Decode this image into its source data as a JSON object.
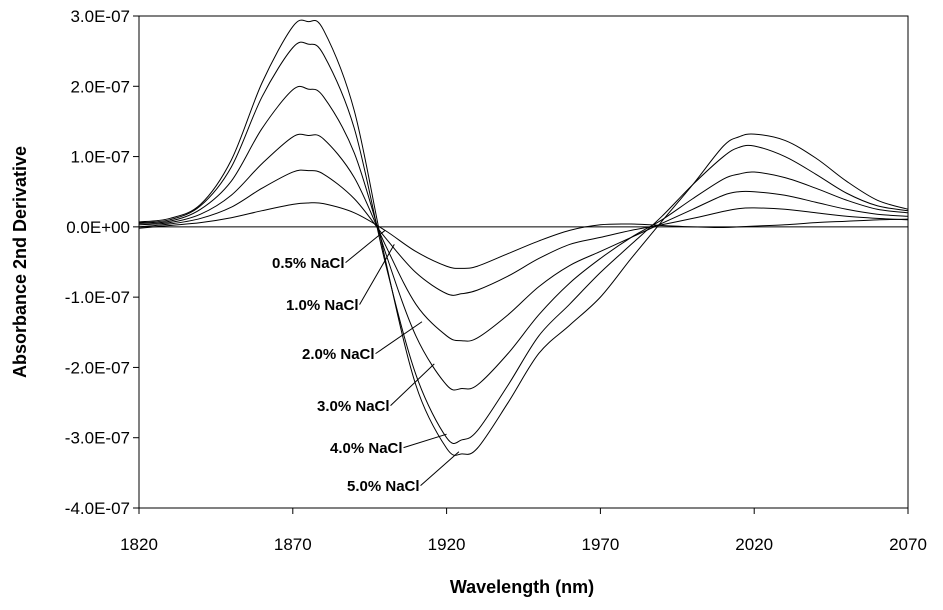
{
  "chart_data": {
    "type": "line",
    "title": "",
    "xlabel": "Wavelength (nm)",
    "ylabel": "Absorbance 2nd Derivative",
    "xlim": [
      1820,
      2070
    ],
    "ylim": [
      -4e-07,
      3e-07
    ],
    "x_ticks": [
      1820,
      1870,
      1920,
      1970,
      2020,
      2070
    ],
    "x_tick_labels": [
      "1820",
      "1870",
      "1920",
      "1970",
      "2020",
      "2070"
    ],
    "y_ticks": [
      3e-07,
      2e-07,
      1e-07,
      0,
      -1e-07,
      -2e-07,
      -3e-07,
      -4e-07
    ],
    "y_tick_labels": [
      "3.0E-07",
      "2.0E-07",
      "1.0E-07",
      "0.0E+00",
      "-1.0E-07",
      "-2.0E-07",
      "-3.0E-07",
      "-4.0E-07"
    ],
    "grid": false,
    "zero_line": true,
    "line_color": "#000000",
    "x": [
      1820,
      1830,
      1840,
      1850,
      1860,
      1870,
      1875,
      1880,
      1890,
      1900,
      1910,
      1920,
      1925,
      1930,
      1940,
      1950,
      1960,
      1970,
      1980,
      1990,
      2000,
      2010,
      2015,
      2020,
      2030,
      2040,
      2050,
      2060,
      2070
    ],
    "series": [
      {
        "label": "0.5% NaCl",
        "values": [
          -2e-09,
          2e-09,
          6e-09,
          1.3e-08,
          2.3e-08,
          3.2e-08,
          3.4e-08,
          3.3e-08,
          2e-08,
          -5e-09,
          -3.5e-08,
          -5.6e-08,
          -5.9e-08,
          -5.6e-08,
          -3.8e-08,
          -2e-08,
          -5e-09,
          3e-09,
          4e-09,
          2e-09,
          0.0,
          -1e-09,
          0.0,
          1e-09,
          3e-09,
          6e-09,
          8e-09,
          1e-08,
          1.1e-08
        ]
      },
      {
        "label": "1.0% NaCl",
        "values": [
          0.0,
          4e-09,
          1.2e-08,
          2.8e-08,
          5.5e-08,
          7.8e-08,
          8e-08,
          7.5e-08,
          4e-08,
          -1.5e-08,
          -6.5e-08,
          -9.5e-08,
          -9.5e-08,
          -9e-08,
          -7e-08,
          -4.5e-08,
          -2.5e-08,
          -1.5e-08,
          -5e-09,
          3e-09,
          1.2e-08,
          2.2e-08,
          2.6e-08,
          2.7e-08,
          2.5e-08,
          2e-08,
          1.5e-08,
          1.2e-08,
          1e-08
        ]
      },
      {
        "label": "2.0% NaCl",
        "values": [
          3e-09,
          6e-09,
          1.8e-08,
          4.5e-08,
          9e-08,
          1.28e-07,
          1.3e-07,
          1.25e-07,
          7e-08,
          -2.5e-08,
          -1.1e-07,
          -1.55e-07,
          -1.62e-07,
          -1.58e-07,
          -1.25e-07,
          -8.5e-08,
          -5.5e-08,
          -3.5e-08,
          -1.5e-08,
          5e-09,
          2.5e-08,
          4.5e-08,
          5e-08,
          5e-08,
          4.5e-08,
          3.5e-08,
          2.5e-08,
          1.8e-08,
          1.5e-08
        ]
      },
      {
        "label": "3.0% NaCl",
        "values": [
          5e-09,
          8e-09,
          2.5e-08,
          6.5e-08,
          1.4e-07,
          1.95e-07,
          1.96e-07,
          1.85e-07,
          1.05e-07,
          -3.5e-08,
          -1.55e-07,
          -2.25e-07,
          -2.3e-07,
          -2.25e-07,
          -1.8e-07,
          -1.25e-07,
          -8e-08,
          -4.5e-08,
          -1.5e-08,
          1e-08,
          4e-08,
          6.8e-08,
          7.5e-08,
          7.8e-08,
          7e-08,
          5.5e-08,
          3.8e-08,
          2.5e-08,
          2e-08
        ]
      },
      {
        "label": "4.0% NaCl",
        "values": [
          6e-09,
          1e-08,
          3e-08,
          8.5e-08,
          1.85e-07,
          2.55e-07,
          2.6e-07,
          2.45e-07,
          1.4e-07,
          -5e-08,
          -2.1e-07,
          -3e-07,
          -3.03e-07,
          -2.9e-07,
          -2.25e-07,
          -1.55e-07,
          -1.1e-07,
          -6.5e-08,
          -2.5e-08,
          1.5e-08,
          6e-08,
          1e-07,
          1.13e-07,
          1.15e-07,
          1e-07,
          7.5e-08,
          4.8e-08,
          3e-08,
          2.3e-08
        ]
      },
      {
        "label": "5.0% NaCl",
        "values": [
          7e-09,
          1.2e-08,
          3.2e-08,
          9.5e-08,
          2.05e-07,
          2.85e-07,
          2.92e-07,
          2.8e-07,
          1.65e-07,
          -4.5e-08,
          -2.25e-07,
          -3.15e-07,
          -3.23e-07,
          -3.15e-07,
          -2.5e-07,
          -1.8e-07,
          -1.4e-07,
          -1e-07,
          -4.5e-08,
          8e-09,
          6e-08,
          1.15e-07,
          1.28e-07,
          1.32e-07,
          1.23e-07,
          9.8e-08,
          6.5e-08,
          3.8e-08,
          2.5e-08
        ]
      }
    ],
    "annotations": [
      {
        "text": "0.5% NaCl",
        "target": [
          1900,
          -5e-09
        ]
      },
      {
        "text": "1.0% NaCl",
        "target": [
          1903,
          -2.5e-08
        ]
      },
      {
        "text": "2.0% NaCl",
        "target": [
          1912,
          -1.35e-07
        ]
      },
      {
        "text": "3.0% NaCl",
        "target": [
          1916,
          -1.95e-07
        ]
      },
      {
        "text": "4.0% NaCl",
        "target": [
          1920,
          -2.95e-07
        ]
      },
      {
        "text": "5.0% NaCl",
        "target": [
          1924,
          -3.2e-07
        ]
      }
    ]
  }
}
